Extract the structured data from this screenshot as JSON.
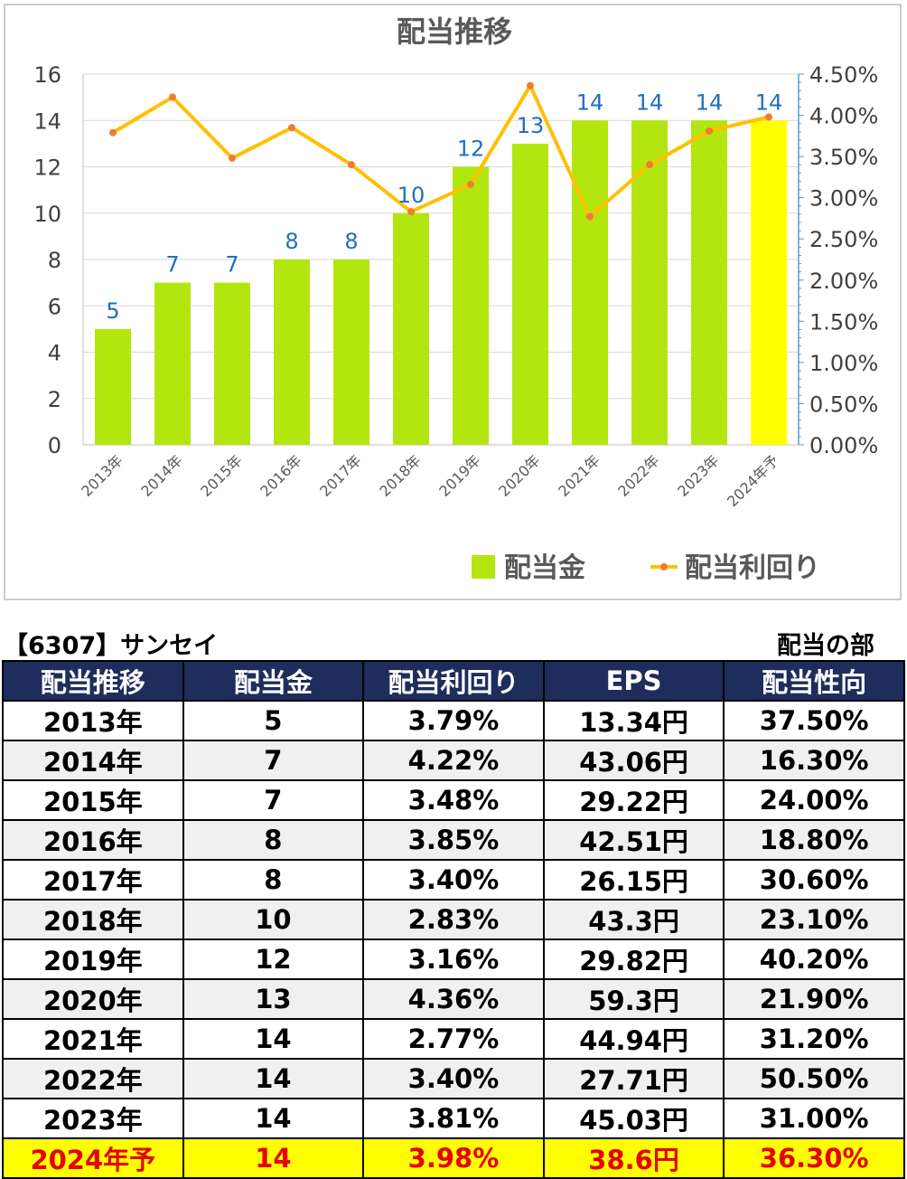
{
  "chart_data": {
    "type": "bar",
    "title": "配当推移",
    "categories": [
      "2013年",
      "2014年",
      "2015年",
      "2016年",
      "2017年",
      "2018年",
      "2019年",
      "2020年",
      "2021年",
      "2022年",
      "2023年",
      "2024年予"
    ],
    "series": [
      {
        "name": "配当金",
        "type": "bar",
        "axis": "left",
        "values": [
          5,
          7,
          7,
          8,
          8,
          10,
          12,
          13,
          14,
          14,
          14,
          14
        ],
        "color": "#b3e60f",
        "highlight_color": "#ffff00",
        "highlight_index": 11
      },
      {
        "name": "配当利回り",
        "type": "line",
        "axis": "right",
        "values": [
          3.79,
          4.22,
          3.48,
          3.85,
          3.4,
          2.83,
          3.16,
          4.36,
          2.77,
          3.4,
          3.81,
          3.98
        ],
        "color": "#ffc000",
        "marker_color": "#ed7d31"
      }
    ],
    "ylim": [
      0,
      16
    ],
    "y_ticks": [
      "0",
      "2",
      "4",
      "6",
      "8",
      "10",
      "12",
      "14",
      "16"
    ],
    "y2lim": [
      0,
      4.5
    ],
    "y2_ticks": [
      "0.00%",
      "0.50%",
      "1.00%",
      "1.50%",
      "2.00%",
      "2.50%",
      "3.00%",
      "3.50%",
      "4.00%",
      "4.50%"
    ],
    "data_label_color": "#1f6fbf",
    "grid": true,
    "legend_position": "bottom-right"
  },
  "info": {
    "company": "【6307】サンセイ",
    "section": "配当の部"
  },
  "table": {
    "headers": [
      "配当推移",
      "配当金",
      "配当利回り",
      "EPS",
      "配当性向"
    ],
    "rows": [
      [
        "2013年",
        "5",
        "3.79%",
        "13.34円",
        "37.50%"
      ],
      [
        "2014年",
        "7",
        "4.22%",
        "43.06円",
        "16.30%"
      ],
      [
        "2015年",
        "7",
        "3.48%",
        "29.22円",
        "24.00%"
      ],
      [
        "2016年",
        "8",
        "3.85%",
        "42.51円",
        "18.80%"
      ],
      [
        "2017年",
        "8",
        "3.40%",
        "26.15円",
        "30.60%"
      ],
      [
        "2018年",
        "10",
        "2.83%",
        "43.3円",
        "23.10%"
      ],
      [
        "2019年",
        "12",
        "3.16%",
        "29.82円",
        "40.20%"
      ],
      [
        "2020年",
        "13",
        "4.36%",
        "59.3円",
        "21.90%"
      ],
      [
        "2021年",
        "14",
        "2.77%",
        "44.94円",
        "31.20%"
      ],
      [
        "2022年",
        "14",
        "3.40%",
        "27.71円",
        "50.50%"
      ],
      [
        "2023年",
        "14",
        "3.81%",
        "45.03円",
        "31.00%"
      ],
      [
        "2024年予",
        "14",
        "3.98%",
        "38.6円",
        "36.30%"
      ]
    ]
  }
}
